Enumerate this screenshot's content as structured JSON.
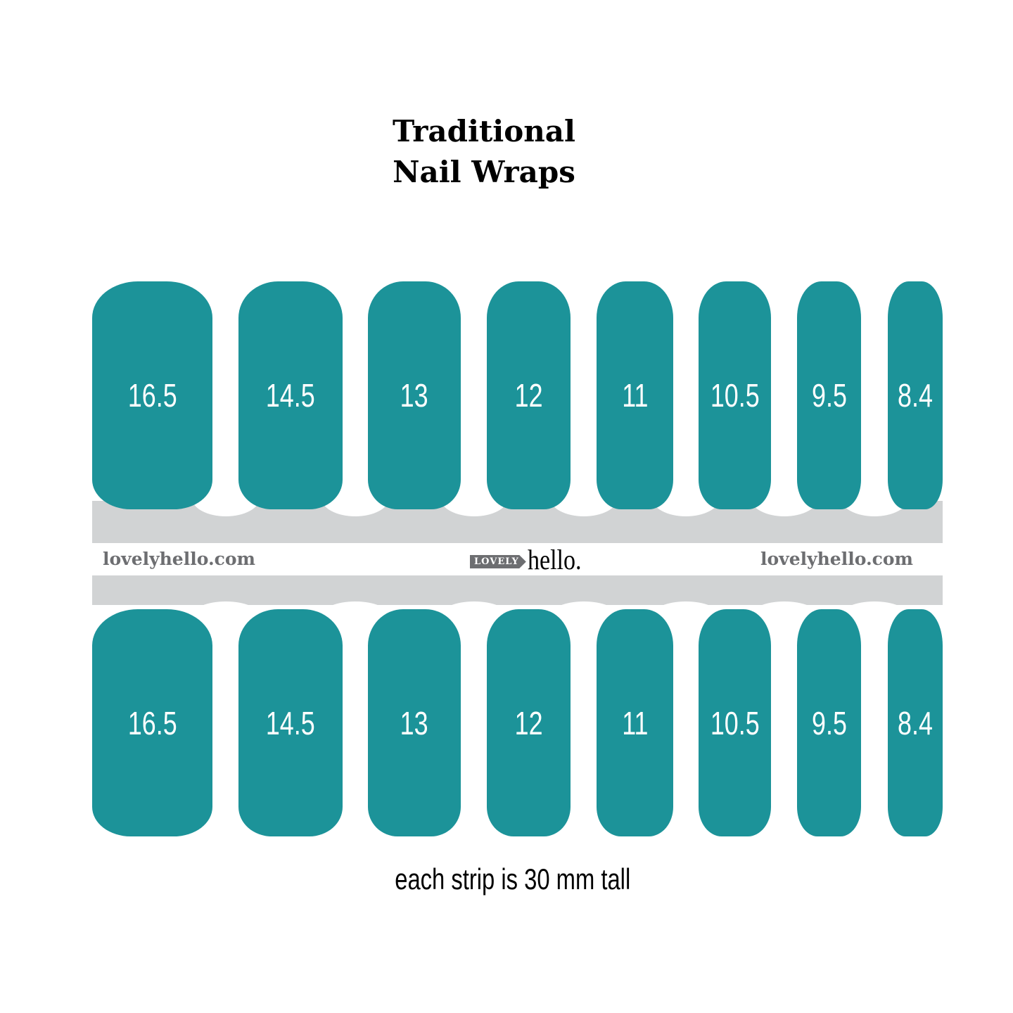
{
  "title": {
    "line1": "Traditional",
    "line2": "Nail Wraps"
  },
  "colors": {
    "nail": "#1c9399",
    "band": "#d1d3d4",
    "brand_gray": "#6d6e71"
  },
  "sizes_top": [
    "16.5",
    "14.5",
    "13",
    "12",
    "11",
    "10.5",
    "9.5",
    "8.4"
  ],
  "sizes_bottom": [
    "16.5",
    "14.5",
    "13",
    "12",
    "11",
    "10.5",
    "9.5",
    "8.4"
  ],
  "strip": {
    "site_left": "lovelyhello.com",
    "site_right": "lovelyhello.com",
    "logo_tag": "LOVELY",
    "logo_word": "hello."
  },
  "footer": "each strip is 30 mm tall"
}
